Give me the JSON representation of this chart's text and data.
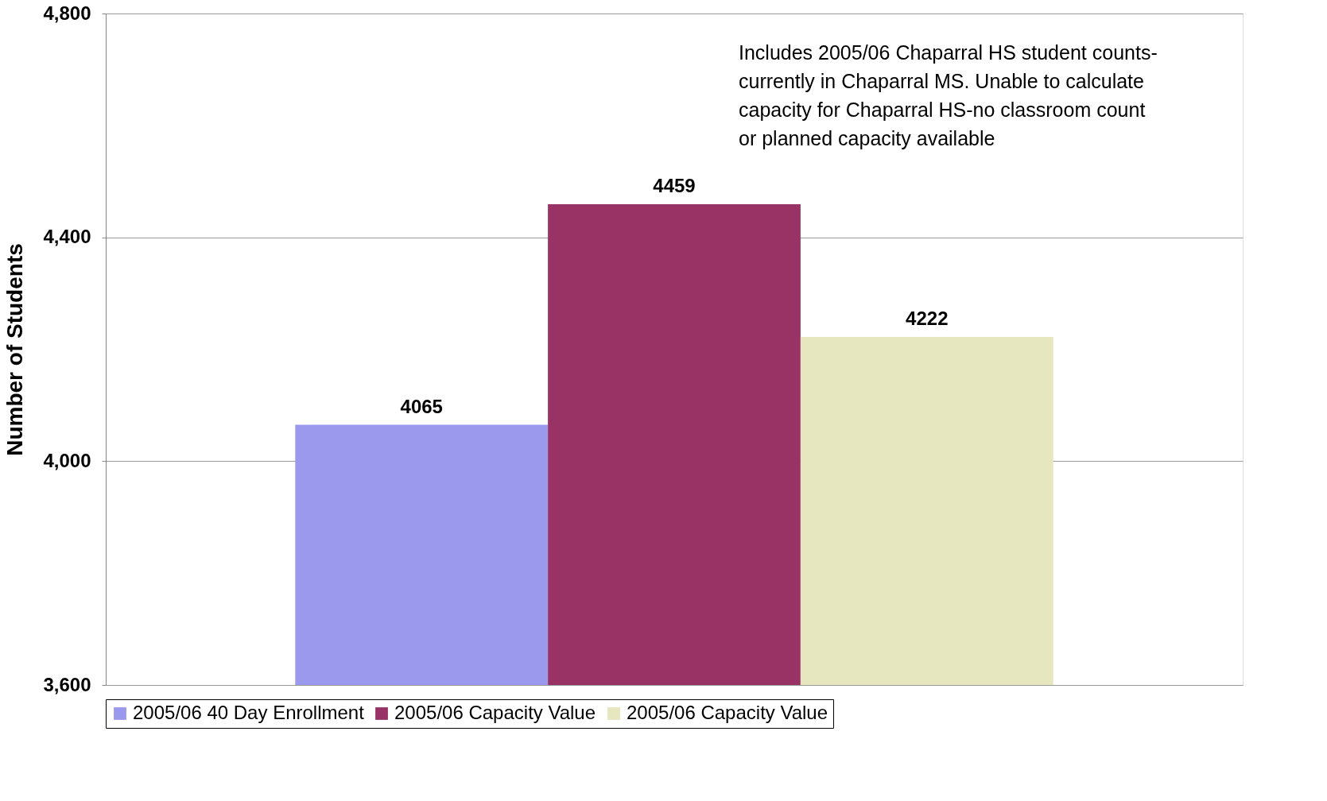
{
  "chart_data": {
    "type": "bar",
    "ylabel": "Number of Students",
    "categories": [
      null
    ],
    "series": [
      {
        "name": "2005/06 40 Day Enrollment",
        "color": "#9b99ee",
        "values": [
          4065
        ]
      },
      {
        "name": "2005/06 Capacity Value",
        "color": "#993366",
        "values": [
          4459
        ]
      },
      {
        "name": "2005/06 Capacity Value",
        "color": "#e6e6bf",
        "values": [
          4222
        ]
      }
    ],
    "ylim": [
      3600,
      4800
    ],
    "yticks": [
      {
        "value": 3600,
        "label": "3,600"
      },
      {
        "value": 4000,
        "label": "4,000"
      },
      {
        "value": 4400,
        "label": "4,400"
      },
      {
        "value": 4800,
        "label": "4,800"
      }
    ],
    "grid": "y",
    "legend": "bottom",
    "data_labels": true,
    "annotations": [
      "Includes 2005/06 Chaparral HS student counts-currently in Chaparral MS. Unable to calculate capacity for Chaparral HS-no classroom count or planned capacity available"
    ]
  }
}
